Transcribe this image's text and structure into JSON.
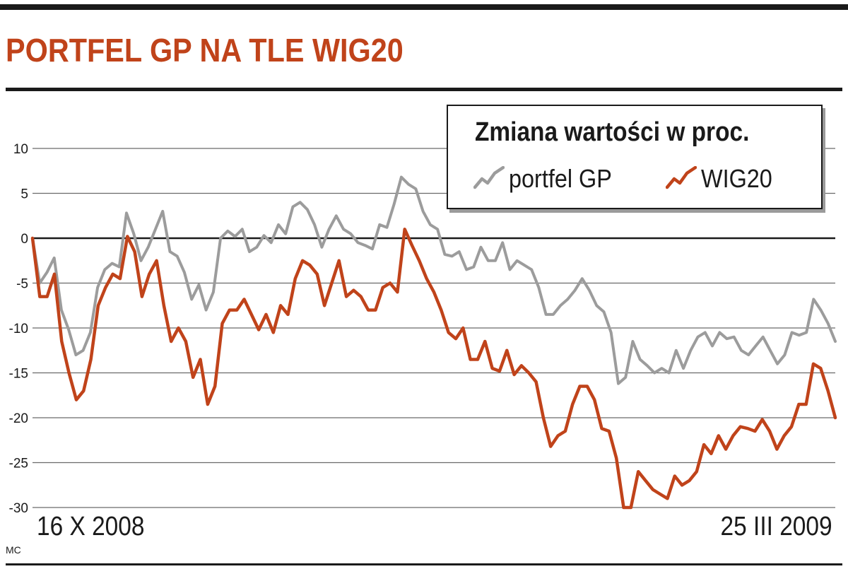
{
  "title": "PORTFEL GP NA TLE WIG20",
  "credit": "MC",
  "colors": {
    "title": "#c0431a",
    "portfel": "#9c9c9c",
    "wig20": "#c0431a",
    "grid": "#6a6a6a"
  },
  "legend": {
    "title": "Zmiana wartości w proc.",
    "items": [
      {
        "label": "portfel GP",
        "color": "#9c9c9c"
      },
      {
        "label": "WIG20",
        "color": "#c0431a"
      }
    ]
  },
  "chart_data": {
    "type": "line",
    "title": "PORTFEL GP NA TLE WIG20",
    "ylabel": "Zmiana wartości w proc.",
    "ylim": [
      -30,
      10
    ],
    "yticks": [
      10,
      5,
      0,
      -5,
      -10,
      -15,
      -20,
      -25,
      -30
    ],
    "ytick_labels": [
      "10",
      "5",
      "0",
      "-5",
      "-10",
      "-15",
      "-20",
      "-25",
      "-30"
    ],
    "grid": true,
    "legend_position": "top-right",
    "x_start_label": "16 X 2008",
    "x_end_label": "25 III 2009",
    "series": [
      {
        "name": "portfel GP",
        "values": [
          0,
          -5,
          -3.8,
          -2.2,
          -8,
          -10.2,
          -13,
          -12.5,
          -10.5,
          -5.5,
          -3.5,
          -2.8,
          -3.2,
          2.8,
          0.5,
          -2.5,
          -1,
          1,
          3,
          -1.5,
          -2,
          -3.8,
          -6.8,
          -5.2,
          -8,
          -6,
          0,
          0.8,
          0.2,
          1,
          -1.5,
          -1,
          0.3,
          -0.5,
          1.5,
          0.5,
          3.5,
          4,
          3.2,
          1.5,
          -1,
          1,
          2.5,
          1,
          0.5,
          -0.5,
          -0.8,
          -1.2,
          1.5,
          1.2,
          3.8,
          6.8,
          6,
          5.5,
          3,
          1.5,
          1,
          -1.8,
          -2,
          -1.5,
          -3.5,
          -3.2,
          -1,
          -2.5,
          -2.5,
          -0.5,
          -3.5,
          -2.5,
          -3,
          -3.5,
          -5.5,
          -8.5,
          -8.5,
          -7.5,
          -6.8,
          -5.8,
          -4.5,
          -5.8,
          -7.5,
          -8.2,
          -10.5,
          -16.2,
          -15.5,
          -11.5,
          -13.5,
          -14.2,
          -15,
          -14.5,
          -15,
          -12.5,
          -14.5,
          -12.5,
          -11,
          -10.5,
          -12,
          -10.5,
          -11.2,
          -11,
          -12.5,
          -13,
          -12,
          -11,
          -12.5,
          -14,
          -13,
          -10.5,
          -10.8,
          -10.5,
          -6.8,
          -8,
          -9.5,
          -11.5
        ]
      },
      {
        "name": "WIG20",
        "values": [
          0,
          -6.5,
          -6.5,
          -4,
          -11.5,
          -15,
          -18,
          -17,
          -13.5,
          -7.5,
          -5.5,
          -4,
          -4.5,
          0.2,
          -1.5,
          -6.5,
          -4,
          -2.5,
          -7.5,
          -11.5,
          -10,
          -11.5,
          -15.5,
          -13.5,
          -18.5,
          -16.5,
          -9.5,
          -8,
          -8,
          -6.8,
          -8.5,
          -10.2,
          -8.5,
          -10.5,
          -7.5,
          -8.5,
          -4.5,
          -2.5,
          -3,
          -4,
          -7.5,
          -5,
          -2.5,
          -6.5,
          -5.8,
          -6.5,
          -8,
          -8,
          -5.5,
          -5,
          -6,
          1,
          -0.8,
          -2.5,
          -4.5,
          -6,
          -8,
          -10.5,
          -11.2,
          -10,
          -13.5,
          -13.5,
          -11.5,
          -14.5,
          -14.8,
          -12.5,
          -15.2,
          -14.2,
          -15,
          -16,
          -20,
          -23.2,
          -22,
          -21.5,
          -18.5,
          -16.5,
          -16.5,
          -18,
          -21.2,
          -21.5,
          -24.5,
          -30,
          -30,
          -26,
          -27,
          -28,
          -28.5,
          -29,
          -26.5,
          -27.5,
          -27,
          -26,
          -23,
          -24,
          -22,
          -23.5,
          -22,
          -21,
          -21.2,
          -21.5,
          -20.2,
          -21.5,
          -23.5,
          -22,
          -21,
          -18.5,
          -18.5,
          -14,
          -14.5,
          -17,
          -20
        ]
      }
    ]
  }
}
